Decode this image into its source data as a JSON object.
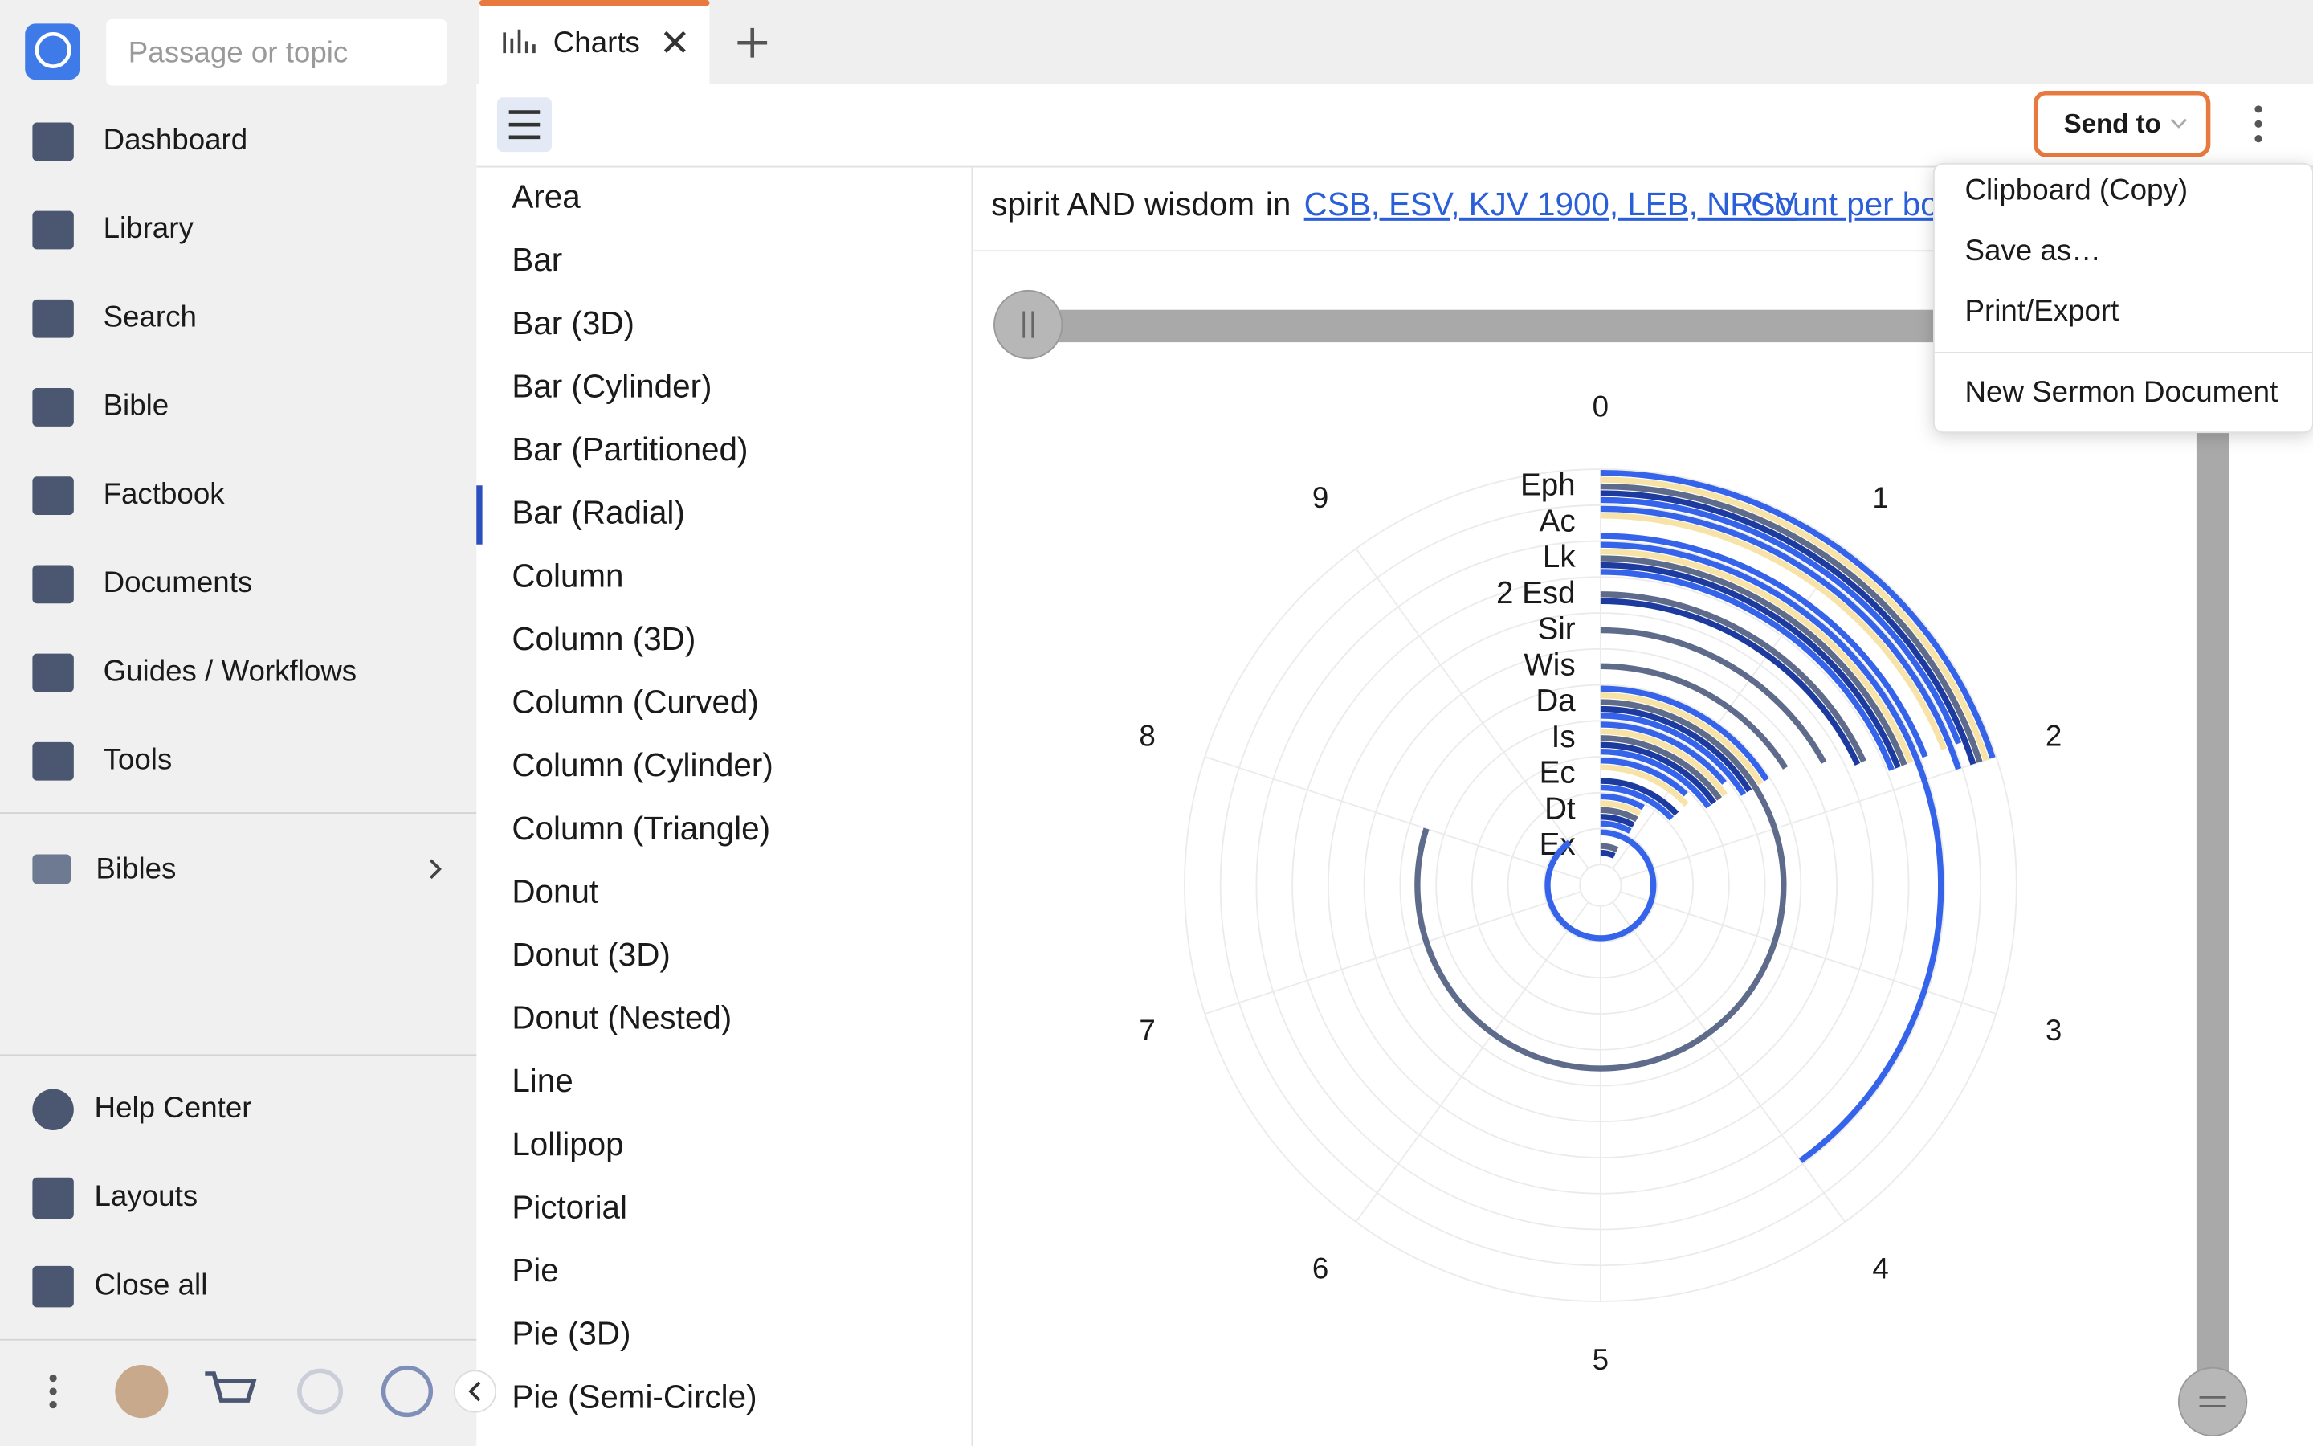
{
  "sidebar": {
    "search_placeholder": "Passage or topic",
    "nav": [
      "Dashboard",
      "Library",
      "Search",
      "Bible",
      "Factbook",
      "Documents",
      "Guides / Workflows",
      "Tools"
    ],
    "section": "Bibles",
    "bottom": [
      "Help Center",
      "Layouts",
      "Close all"
    ]
  },
  "tabs": {
    "active": "Charts"
  },
  "toolbar": {
    "send_to": "Send to"
  },
  "chart_types": {
    "items": [
      "Area",
      "Bar",
      "Bar (3D)",
      "Bar (Cylinder)",
      "Bar (Partitioned)",
      "Bar (Radial)",
      "Column",
      "Column (3D)",
      "Column (Curved)",
      "Column (Cylinder)",
      "Column (Triangle)",
      "Donut",
      "Donut (3D)",
      "Donut (Nested)",
      "Line",
      "Lollipop",
      "Pictorial",
      "Pie",
      "Pie (3D)",
      "Pie (Semi-Circle)"
    ],
    "selected": 5
  },
  "query": {
    "text": "spirit AND wisdom",
    "in": "in",
    "versions": "CSB, ESV, KJV 1900, LEB, NRSV",
    "mode": "Count per bo"
  },
  "menu": {
    "items": [
      "Clipboard (Copy)",
      "Save as…",
      "Print/Export"
    ],
    "extra": "New Sermon Document"
  },
  "chart": {
    "type": "radial-bar",
    "angle_lim": [
      0,
      10
    ],
    "angle_ticks": [
      0,
      1,
      2,
      3,
      4,
      5,
      6,
      7,
      8,
      9
    ],
    "categories": [
      "Eph",
      "Ac",
      "Lk",
      "2 Esd",
      "Sir",
      "Wis",
      "Da",
      "Is",
      "Ec",
      "Dt",
      "Ex"
    ],
    "series": [
      {
        "color": "#3563e9",
        "values": [
          2.0,
          2.0,
          4.0,
          0,
          0,
          0,
          1.6,
          1.4,
          1.2,
          0.8,
          9.0
        ]
      },
      {
        "color": "#f7e3a8",
        "values": [
          2.0,
          1.9,
          1.9,
          0,
          0,
          0,
          1.6,
          1.5,
          1.3,
          0.8,
          0
        ]
      },
      {
        "color": "#5f6b8a",
        "values": [
          2.0,
          0,
          1.9,
          1.8,
          1.7,
          1.6,
          8.0,
          1.5,
          0,
          0.8,
          0.7
        ]
      },
      {
        "color": "#1d3a9e",
        "values": [
          2.0,
          0,
          1.9,
          1.8,
          0,
          0,
          1.6,
          1.5,
          1.3,
          0.8,
          0.7
        ]
      },
      {
        "color": "#3563e9",
        "values": [
          1.9,
          1.9,
          1.9,
          0,
          0,
          0,
          1.6,
          1.5,
          1.3,
          0.8,
          0
        ]
      }
    ]
  }
}
